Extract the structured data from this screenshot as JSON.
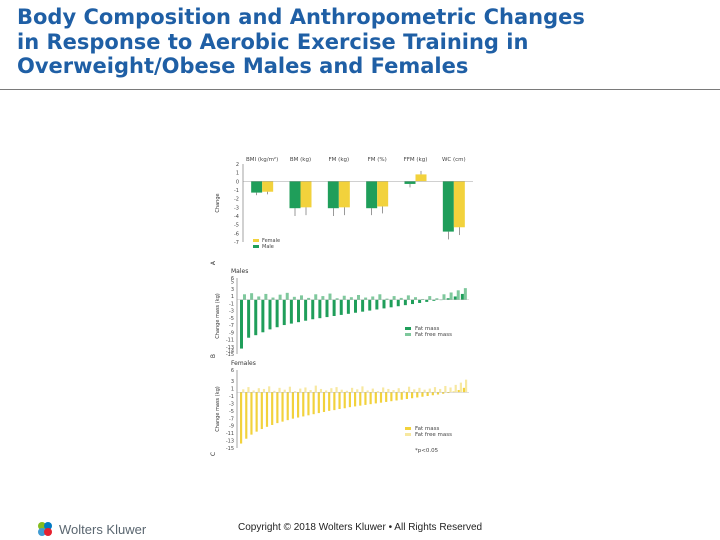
{
  "slide": {
    "title_line1": "Body Composition and Anthropometric Changes",
    "title_line2": "in Response to Aerobic Exercise Training in",
    "title_line3": "Overweight/Obese Males and Females",
    "copyright": "Copyright © 2018 Wolters Kluwer • All Rights Reserved",
    "logo_text": "Wolters Kluwer"
  },
  "colors": {
    "title": "#1f5fa5",
    "male": "#1f9e5a",
    "female": "#f2d23c",
    "male_fat_free": "#7ec89c",
    "female_fat_free": "#f7e8a0"
  },
  "chart_data": [
    {
      "type": "bar",
      "panel": "A",
      "categories": [
        "BMI (kg/m²)",
        "BM (kg)",
        "FM (kg)",
        "FM (%)",
        "FFM (kg)",
        "WC (cm)"
      ],
      "series": [
        {
          "name": "Males",
          "values": [
            -1.3,
            -3.1,
            -3.1,
            -3.1,
            -0.3,
            -5.8
          ]
        },
        {
          "name": "Females",
          "values": [
            -1.2,
            -3.0,
            -3.0,
            -2.9,
            0.8,
            -5.3
          ]
        }
      ],
      "error": [
        0.3,
        0.9,
        0.9,
        0.8,
        0.4,
        0.9
      ],
      "yticks": [
        "2",
        "1",
        "0",
        "-1",
        "-2",
        "-3",
        "-4",
        "-5",
        "-6",
        "-7"
      ],
      "ylim": [
        -7,
        2
      ],
      "ylabel": "Change",
      "legend": [
        "Female",
        "Male"
      ]
    },
    {
      "type": "bar",
      "panel": "B",
      "title": "Males",
      "ylabel": "Change mass (kg)",
      "yticks": [
        "6",
        "5",
        "3",
        "1",
        "-1",
        "-3",
        "-5",
        "-7",
        "-9",
        "-11",
        "-13",
        "-14",
        "-15"
      ],
      "ylim": [
        -15,
        6
      ],
      "legend": [
        "Fat mass",
        "Fat free mass"
      ],
      "series": [
        {
          "name": "Fat mass",
          "values": [
            -13.5,
            -10.5,
            -9.8,
            -9.0,
            -8.2,
            -7.6,
            -7.0,
            -6.6,
            -6.2,
            -5.8,
            -5.4,
            -5.1,
            -4.8,
            -4.5,
            -4.2,
            -3.9,
            -3.6,
            -3.3,
            -3.0,
            -2.7,
            -2.4,
            -2.1,
            -1.8,
            -1.5,
            -1.2,
            -0.9,
            -0.6,
            -0.3,
            0.0,
            0.4,
            0.9,
            1.6
          ]
        },
        {
          "name": "Fat free mass",
          "values": [
            1.5,
            1.8,
            0.9,
            1.6,
            0.6,
            1.4,
            1.9,
            0.8,
            1.2,
            0.5,
            1.5,
            1.0,
            1.7,
            0.4,
            1.1,
            0.7,
            1.3,
            0.6,
            0.9,
            1.5,
            0.3,
            1.0,
            0.5,
            1.2,
            0.7,
            0.2,
            1.0,
            0.4,
            1.5,
            2.0,
            2.6,
            3.2
          ]
        }
      ]
    },
    {
      "type": "bar",
      "panel": "C",
      "title": "Females",
      "ylabel": "Change mass (kg)",
      "yticks": [
        "6",
        "3",
        "1",
        "-1",
        "-3",
        "-5",
        "-7",
        "-9",
        "-11",
        "-13",
        "-15"
      ],
      "ylim": [
        -15,
        6
      ],
      "legend": [
        "Fat mass",
        "Fat free mass"
      ],
      "note": "*p<0.05",
      "series": [
        {
          "name": "Fat mass",
          "values": [
            -13.8,
            -12.5,
            -11.4,
            -10.6,
            -9.9,
            -9.3,
            -8.8,
            -8.3,
            -7.9,
            -7.5,
            -7.1,
            -6.8,
            -6.5,
            -6.2,
            -5.9,
            -5.6,
            -5.3,
            -5.0,
            -4.8,
            -4.5,
            -4.3,
            -4.0,
            -3.8,
            -3.6,
            -3.4,
            -3.2,
            -3.0,
            -2.8,
            -2.6,
            -2.4,
            -2.2,
            -2.0,
            -1.8,
            -1.6,
            -1.4,
            -1.2,
            -1.0,
            -0.8,
            -0.6,
            -0.4,
            -0.2,
            0.2,
            0.6,
            1.2
          ]
        },
        {
          "name": "Fat free mass",
          "values": [
            0.8,
            1.4,
            0.5,
            1.1,
            0.9,
            1.6,
            0.4,
            1.2,
            0.7,
            1.5,
            0.3,
            1.0,
            1.3,
            0.6,
            1.8,
            0.9,
            0.5,
            1.1,
            1.4,
            0.7,
            0.4,
            1.2,
            0.8,
            1.6,
            0.5,
            1.0,
            0.3,
            1.3,
            0.9,
            0.6,
            1.1,
            0.4,
            1.5,
            0.8,
            1.2,
            0.7,
            1.0,
            1.4,
            0.9,
            1.7,
            1.3,
            2.0,
            2.6,
            3.4
          ]
        }
      ]
    }
  ]
}
